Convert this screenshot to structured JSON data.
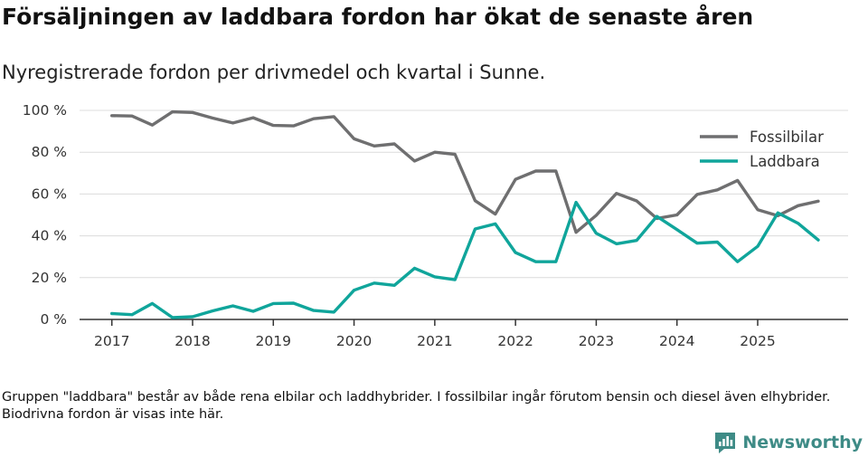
{
  "header": {
    "title": "Försäljningen av laddbara fordon har ökat de senaste åren",
    "subtitle": "Nyregistrerade fordon per drivmedel och kvartal i Sunne."
  },
  "footnote": "Gruppen \"laddbara\" består av både rena elbilar och laddhybrider. I fossilbilar ingår förutom bensin och diesel även elhybrider. Biodrivna fordon är visas inte här.",
  "brand": {
    "name": "Newsworthy",
    "icon": "newsworthy-logo-icon"
  },
  "colors": {
    "fossil": "#6f6f70",
    "laddbara": "#10a59b",
    "brand": "#3e8b86"
  },
  "chart_data": {
    "type": "line",
    "title": "Försäljningen av laddbara fordon har ökat de senaste åren",
    "subtitle": "Nyregistrerade fordon per drivmedel och kvartal i Sunne.",
    "xlabel": "",
    "ylabel": "",
    "ylim": [
      0,
      100
    ],
    "yticks": [
      0,
      20,
      40,
      60,
      80,
      100
    ],
    "ytick_labels": [
      "0 %",
      "20 %",
      "40 %",
      "60 %",
      "80 %",
      "100 %"
    ],
    "xticks": [
      2017,
      2018,
      2019,
      2020,
      2021,
      2022,
      2023,
      2024,
      2025
    ],
    "xtick_labels": [
      "2017",
      "2018",
      "2019",
      "2020",
      "2021",
      "2022",
      "2023",
      "2024",
      "2025"
    ],
    "x": [
      2017.0,
      2017.25,
      2017.5,
      2017.75,
      2018.0,
      2018.25,
      2018.5,
      2018.75,
      2019.0,
      2019.25,
      2019.5,
      2019.75,
      2020.0,
      2020.25,
      2020.5,
      2020.75,
      2021.0,
      2021.25,
      2021.5,
      2021.75,
      2022.0,
      2022.25,
      2022.5,
      2022.75,
      2023.0,
      2023.25,
      2023.5,
      2023.75,
      2024.0,
      2024.25,
      2024.5,
      2024.75,
      2025.0,
      2025.25,
      2025.5,
      2025.75
    ],
    "grid": true,
    "legend_position": "top-right",
    "series": [
      {
        "name": "Fossilbilar",
        "color": "#6f6f70",
        "values": [
          97.5,
          97.3,
          93.0,
          99.3,
          99.0,
          96.3,
          94.0,
          96.5,
          92.8,
          92.6,
          96.0,
          97.0,
          86.4,
          83.0,
          84.0,
          75.8,
          80.0,
          79.0,
          56.8,
          50.4,
          67.0,
          71.0,
          71.0,
          41.7,
          49.8,
          60.3,
          56.7,
          48.3,
          50.0,
          59.8,
          62.0,
          66.5,
          52.5,
          49.6,
          54.4,
          56.6
        ]
      },
      {
        "name": "Laddbara",
        "color": "#10a59b",
        "values": [
          2.8,
          2.3,
          7.6,
          0.9,
          1.3,
          4.1,
          6.5,
          3.9,
          7.6,
          7.8,
          4.3,
          3.5,
          14.0,
          17.4,
          16.3,
          24.5,
          20.4,
          19.0,
          43.3,
          45.7,
          32.0,
          27.6,
          27.6,
          56.0,
          41.2,
          36.2,
          37.8,
          49.3,
          43.0,
          36.5,
          37.0,
          27.6,
          35.0,
          51.0,
          46.0,
          38.0
        ]
      }
    ]
  }
}
